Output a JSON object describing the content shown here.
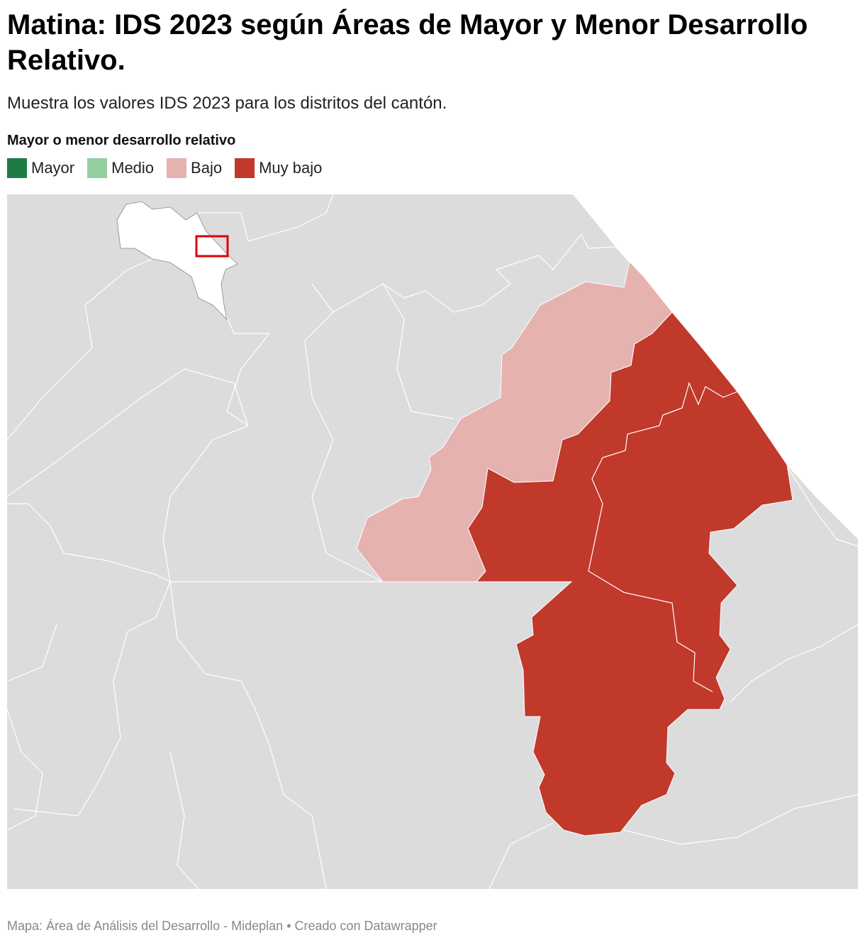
{
  "title": "Matina: IDS 2023 según Áreas de Mayor y Menor Desarrollo Relativo.",
  "subtitle": "Muestra los valores IDS 2023 para los distritos del cantón.",
  "legend": {
    "title": "Mayor o menor desarrollo relativo",
    "items": [
      {
        "label": "Mayor",
        "color": "#1e7b45"
      },
      {
        "label": "Medio",
        "color": "#94cfa0"
      },
      {
        "label": "Bajo",
        "color": "#e5b2b0"
      },
      {
        "label": "Muy bajo",
        "color": "#c0392b"
      }
    ]
  },
  "footer": "Mapa: Área de Análisis del Desarrollo - Mideplan • Creado con Datawrapper"
}
